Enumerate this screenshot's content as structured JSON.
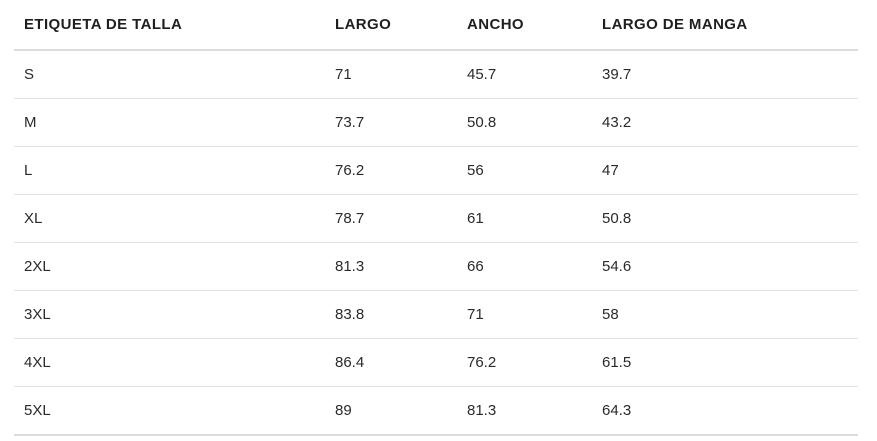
{
  "chart_data": {
    "type": "table",
    "title": "",
    "columns": [
      "ETIQUETA DE TALLA",
      "LARGO",
      "ANCHO",
      "LARGO DE MANGA"
    ],
    "rows": [
      [
        "S",
        71,
        45.7,
        39.7
      ],
      [
        "M",
        73.7,
        50.8,
        43.2
      ],
      [
        "L",
        76.2,
        56,
        47
      ],
      [
        "XL",
        78.7,
        61,
        50.8
      ],
      [
        "2XL",
        81.3,
        66,
        54.6
      ],
      [
        "3XL",
        83.8,
        71,
        58
      ],
      [
        "4XL",
        86.4,
        76.2,
        61.5
      ],
      [
        "5XL",
        89,
        81.3,
        64.3
      ]
    ]
  },
  "table": {
    "headers": {
      "size": "ETIQUETA DE TALLA",
      "length": "LARGO",
      "width": "ANCHO",
      "sleeve": "LARGO DE MANGA"
    },
    "rows": [
      {
        "size": "S",
        "length": "71",
        "width": "45.7",
        "sleeve": "39.7"
      },
      {
        "size": "M",
        "length": "73.7",
        "width": "50.8",
        "sleeve": "43.2"
      },
      {
        "size": "L",
        "length": "76.2",
        "width": "56",
        "sleeve": "47"
      },
      {
        "size": "XL",
        "length": "78.7",
        "width": "61",
        "sleeve": "50.8"
      },
      {
        "size": "2XL",
        "length": "81.3",
        "width": "66",
        "sleeve": "54.6"
      },
      {
        "size": "3XL",
        "length": "83.8",
        "width": "71",
        "sleeve": "58"
      },
      {
        "size": "4XL",
        "length": "86.4",
        "width": "76.2",
        "sleeve": "61.5"
      },
      {
        "size": "5XL",
        "length": "89",
        "width": "81.3",
        "sleeve": "64.3"
      }
    ],
    "colors": {
      "header_text": "#1f1f1f",
      "body_text": "#2a2a2a",
      "divider": "#e2e2e2",
      "background": "#ffffff"
    }
  }
}
